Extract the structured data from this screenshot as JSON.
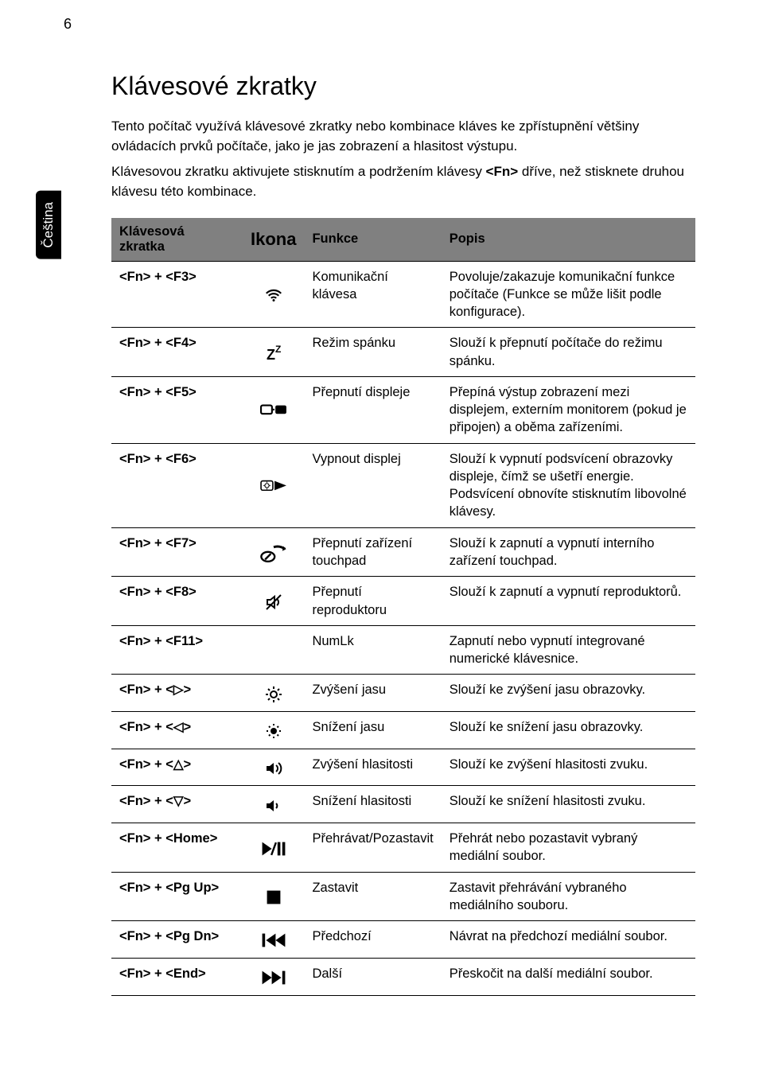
{
  "page_number": "6",
  "side_tab": "Čeština",
  "heading": "Klávesové zkratky",
  "intro": {
    "p1": "Tento počítač využívá klávesové zkratky nebo kombinace kláves ke zpřístupnění většiny ovládacích prvků počítače, jako je jas zobrazení a hlasitost výstupu.",
    "p2_a": "Klávesovou zkratku aktivujete stisknutím a podržením klávesy ",
    "p2_key": "<Fn>",
    "p2_b": " dříve, než stisknete druhou klávesu této kombinace."
  },
  "table": {
    "headers": {
      "shortcut_a": "Klávesová",
      "shortcut_b": "zkratka",
      "icon": "Ikona",
      "func": "Funkce",
      "desc": "Popis"
    },
    "rows": [
      {
        "shortcut": "<Fn> + <F3>",
        "icon": "wifi",
        "func": "Komunikační klávesa",
        "desc": "Povoluje/zakazuje komunikační funkce počítače (Funkce se může lišit podle konfigurace)."
      },
      {
        "shortcut": "<Fn> + <F4>",
        "icon": "sleep",
        "func": "Režim spánku",
        "desc": "Slouží k přepnutí počítače do režimu spánku."
      },
      {
        "shortcut": "<Fn> + <F5>",
        "icon": "display-switch",
        "func": "Přepnutí displeje",
        "desc": "Přepíná výstup zobrazení mezi displejem, externím monitorem (pokud je připojen) a oběma zařízeními."
      },
      {
        "shortcut": "<Fn> + <F6>",
        "icon": "display-off",
        "func": "Vypnout displej",
        "desc": "Slouží k vypnutí podsvícení obrazovky displeje, čímž se ušetří energie. Podsvícení obnovíte stisknutím libovolné klávesy."
      },
      {
        "shortcut": "<Fn> + <F7>",
        "icon": "touchpad",
        "func": "Přepnutí zařízení touchpad",
        "desc": "Slouží k zapnutí a vypnutí interního zařízení touchpad."
      },
      {
        "shortcut": "<Fn> + <F8>",
        "icon": "speaker",
        "func": "Přepnutí reproduktoru",
        "desc": "Slouží k zapnutí a vypnutí reproduktorů."
      },
      {
        "shortcut": "<Fn> + <F11>",
        "icon": "",
        "func": "NumLk",
        "desc": "Zapnutí nebo vypnutí integrované numerické klávesnice."
      },
      {
        "shortcut": "<Fn> + <▷>",
        "icon": "bright-up",
        "func": "Zvýšení jasu",
        "desc": "Slouží ke zvýšení jasu obrazovky."
      },
      {
        "shortcut": "<Fn> + <◁>",
        "icon": "bright-down",
        "func": "Snížení jasu",
        "desc": "Slouží ke snížení jasu obrazovky."
      },
      {
        "shortcut": "<Fn> + <△>",
        "icon": "vol-up",
        "func": "Zvýšení hlasitosti",
        "desc": "Slouží ke zvýšení hlasitosti zvuku."
      },
      {
        "shortcut": "<Fn> + <▽>",
        "icon": "vol-down",
        "func": "Snížení hlasitosti",
        "desc": "Slouží ke snížení hlasitosti zvuku."
      },
      {
        "shortcut": "<Fn> + <Home>",
        "icon": "play-pause",
        "func": "Přehrávat/Pozastavit",
        "desc": "Přehrát nebo pozastavit vybraný mediální soubor."
      },
      {
        "shortcut": "<Fn> + <Pg Up>",
        "icon": "stop",
        "func": "Zastavit",
        "desc": "Zastavit přehrávání vybraného mediálního souboru."
      },
      {
        "shortcut": "<Fn> + <Pg Dn>",
        "icon": "prev",
        "func": "Předchozí",
        "desc": "Návrat na předchozí mediální soubor."
      },
      {
        "shortcut": "<Fn> + <End>",
        "icon": "next",
        "func": "Další",
        "desc": "Přeskočit na další mediální soubor."
      }
    ]
  },
  "colors": {
    "header_bg": "#808080",
    "border": "#000000",
    "text": "#000000",
    "tab_bg": "#000000",
    "tab_text": "#ffffff"
  }
}
